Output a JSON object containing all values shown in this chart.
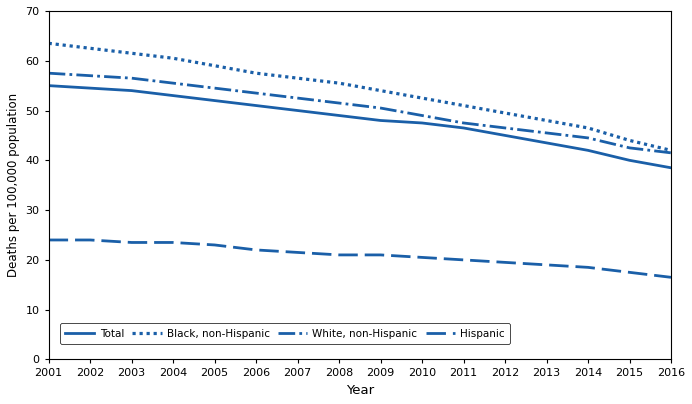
{
  "years": [
    2001,
    2002,
    2003,
    2004,
    2005,
    2006,
    2007,
    2008,
    2009,
    2010,
    2011,
    2012,
    2013,
    2014,
    2015,
    2016
  ],
  "total": [
    55.0,
    54.5,
    54.0,
    53.0,
    52.0,
    51.0,
    50.0,
    49.0,
    48.0,
    47.5,
    46.5,
    45.0,
    43.5,
    42.0,
    40.0,
    38.5
  ],
  "black_nonhispanic": [
    63.5,
    62.5,
    61.5,
    60.5,
    59.0,
    57.5,
    56.5,
    55.5,
    54.0,
    52.5,
    51.0,
    49.5,
    48.0,
    46.5,
    44.0,
    42.0
  ],
  "white_nonhispanic": [
    57.5,
    57.0,
    56.5,
    55.5,
    54.5,
    53.5,
    52.5,
    51.5,
    50.5,
    49.0,
    47.5,
    46.5,
    45.5,
    44.5,
    42.5,
    41.5
  ],
  "hispanic": [
    24.0,
    24.0,
    23.5,
    23.5,
    23.0,
    22.0,
    21.5,
    21.0,
    21.0,
    20.5,
    20.0,
    19.5,
    19.0,
    18.5,
    17.5,
    16.5
  ],
  "line_color": "#1a5fa8",
  "ylabel": "Deaths per 100,000 population",
  "xlabel": "Year",
  "ylim": [
    0,
    70
  ],
  "yticks": [
    0,
    10,
    20,
    30,
    40,
    50,
    60,
    70
  ],
  "legend_labels": [
    "Total",
    "Black, non-Hispanic",
    "White, non-Hispanic",
    "Hispanic"
  ],
  "background_color": "#ffffff"
}
